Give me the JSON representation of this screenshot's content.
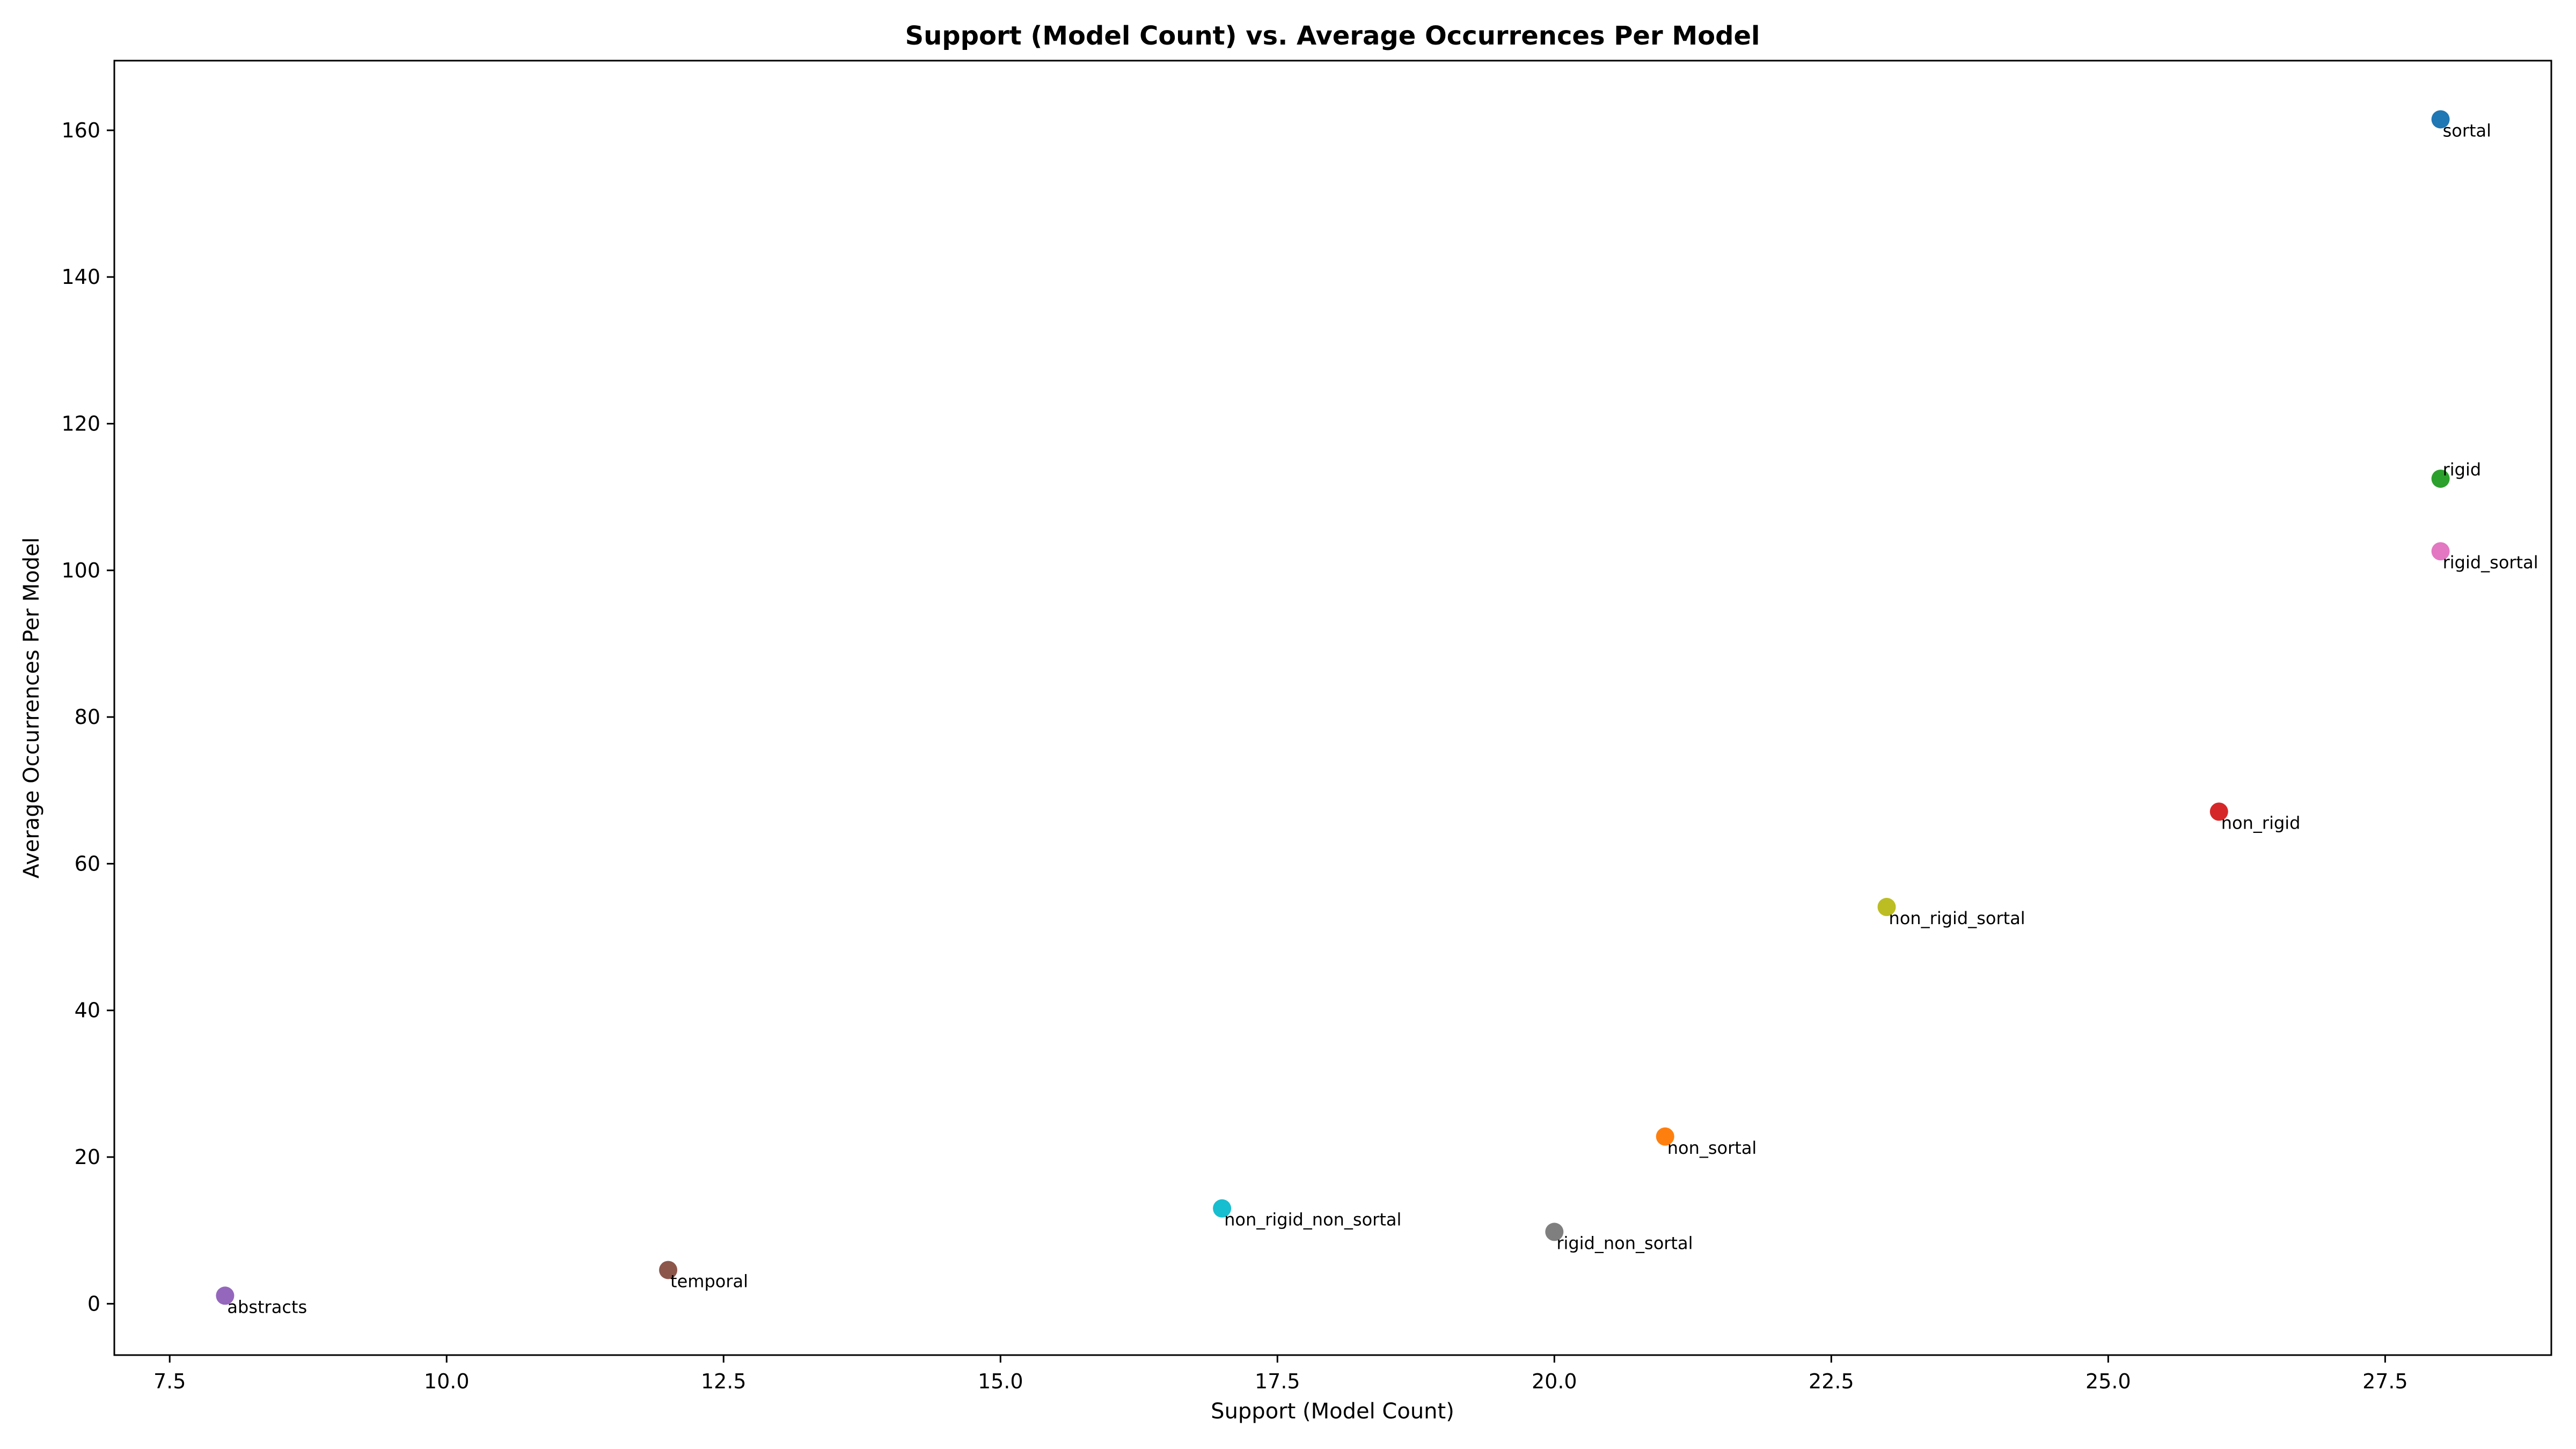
{
  "chart_data": {
    "type": "scatter",
    "title": "Support (Model Count) vs. Average Occurrences Per Model",
    "xlabel": "Support (Model Count)",
    "ylabel": "Average Occurrences Per Model",
    "xlim": [
      7.0,
      29.0
    ],
    "ylim": [
      -7.0,
      169.5
    ],
    "xticks": [
      7.5,
      10.0,
      12.5,
      15.0,
      17.5,
      20.0,
      22.5,
      25.0,
      27.5
    ],
    "xtick_labels": [
      "7.5",
      "10.0",
      "12.5",
      "15.0",
      "17.5",
      "20.0",
      "22.5",
      "25.0",
      "27.5"
    ],
    "yticks": [
      0,
      20,
      40,
      60,
      80,
      100,
      120,
      140,
      160
    ],
    "ytick_labels": [
      "0",
      "20",
      "40",
      "60",
      "80",
      "100",
      "120",
      "140",
      "160"
    ],
    "grid": false,
    "points": [
      {
        "label": "sortal",
        "x": 28,
        "y": 161.5,
        "color": "#1f77b4",
        "label_pos": "below"
      },
      {
        "label": "non_sortal",
        "x": 21,
        "y": 22.8,
        "color": "#ff7f0e",
        "label_pos": "below"
      },
      {
        "label": "rigid",
        "x": 28,
        "y": 112.5,
        "color": "#2ca02c",
        "label_pos": "above"
      },
      {
        "label": "non_rigid",
        "x": 26,
        "y": 67.1,
        "color": "#d62728",
        "label_pos": "below"
      },
      {
        "label": "abstracts",
        "x": 8,
        "y": 1.1,
        "color": "#9467bd",
        "label_pos": "below"
      },
      {
        "label": "temporal",
        "x": 12,
        "y": 4.6,
        "color": "#8c564b",
        "label_pos": "below"
      },
      {
        "label": "rigid_sortal",
        "x": 28,
        "y": 102.6,
        "color": "#e377c2",
        "label_pos": "below"
      },
      {
        "label": "rigid_non_sortal",
        "x": 20,
        "y": 9.8,
        "color": "#7f7f7f",
        "label_pos": "below"
      },
      {
        "label": "non_rigid_sortal",
        "x": 23,
        "y": 54.1,
        "color": "#bcbd22",
        "label_pos": "below"
      },
      {
        "label": "non_rigid_non_sortal",
        "x": 17,
        "y": 13.0,
        "color": "#17becf",
        "label_pos": "below"
      }
    ]
  }
}
